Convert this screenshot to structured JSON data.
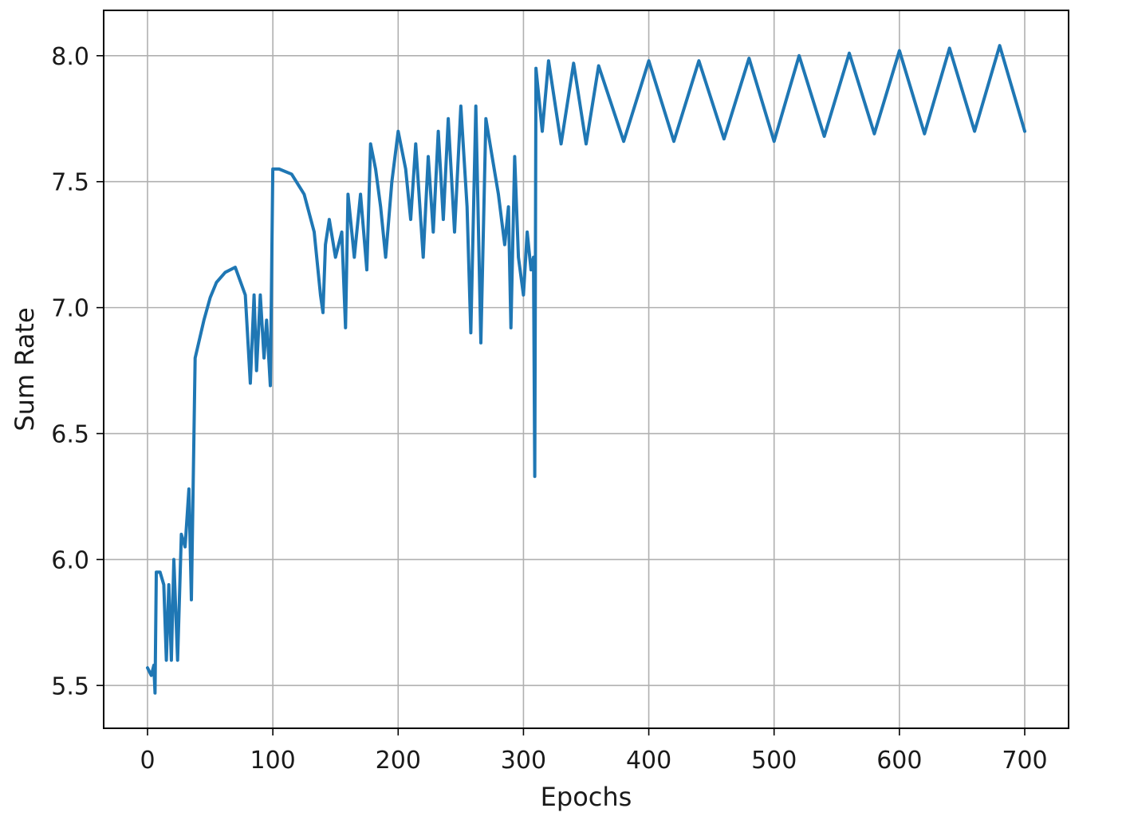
{
  "chart_data": {
    "type": "line",
    "title": "",
    "xlabel": "Epochs",
    "ylabel": "Sum Rate",
    "xlim": [
      -35,
      735
    ],
    "ylim": [
      5.33,
      8.18
    ],
    "xticks": [
      0,
      100,
      200,
      300,
      400,
      500,
      600,
      700
    ],
    "yticks": [
      5.5,
      6.0,
      6.5,
      7.0,
      7.5,
      8.0
    ],
    "xtick_labels": [
      "0",
      "100",
      "200",
      "300",
      "400",
      "500",
      "600",
      "700"
    ],
    "ytick_labels": [
      "5.5",
      "6.0",
      "6.5",
      "7.0",
      "7.5",
      "8.0"
    ],
    "grid": true,
    "series": [
      {
        "color": "#1f77b4",
        "x": [
          0,
          3,
          5,
          6,
          7,
          10,
          13,
          15,
          17,
          19,
          21,
          24,
          27,
          30,
          33,
          35,
          38,
          45,
          50,
          55,
          62,
          70,
          78,
          82,
          85,
          87,
          90,
          93,
          95,
          98,
          100,
          102,
          105,
          115,
          125,
          133,
          138,
          140,
          142,
          145,
          150,
          155,
          158,
          160,
          165,
          170,
          175,
          178,
          182,
          186,
          190,
          195,
          200,
          206,
          210,
          214,
          220,
          224,
          228,
          232,
          236,
          240,
          245,
          250,
          255,
          258,
          262,
          266,
          270,
          275,
          280,
          285,
          288,
          290,
          293,
          296,
          300,
          303,
          306,
          308,
          309,
          310,
          315,
          320,
          330,
          340,
          350,
          360,
          380,
          400,
          420,
          440,
          460,
          480,
          500,
          520,
          540,
          560,
          580,
          600,
          620,
          640,
          660,
          680,
          700
        ],
        "y": [
          5.57,
          5.54,
          5.58,
          5.47,
          5.95,
          5.95,
          5.9,
          5.6,
          5.9,
          5.6,
          6.0,
          5.6,
          6.1,
          6.05,
          6.28,
          5.84,
          6.8,
          6.95,
          7.04,
          7.1,
          7.14,
          7.16,
          7.05,
          6.7,
          7.05,
          6.75,
          7.05,
          6.8,
          6.95,
          6.69,
          7.55,
          7.55,
          7.55,
          7.53,
          7.45,
          7.3,
          7.05,
          6.98,
          7.25,
          7.35,
          7.2,
          7.3,
          6.92,
          7.45,
          7.2,
          7.45,
          7.15,
          7.65,
          7.55,
          7.4,
          7.2,
          7.5,
          7.7,
          7.55,
          7.35,
          7.65,
          7.2,
          7.6,
          7.3,
          7.7,
          7.35,
          7.75,
          7.3,
          7.8,
          7.4,
          6.9,
          7.8,
          6.86,
          7.75,
          7.6,
          7.45,
          7.25,
          7.4,
          6.92,
          7.6,
          7.2,
          7.05,
          7.3,
          7.15,
          7.2,
          6.33,
          7.95,
          7.7,
          7.98,
          7.65,
          7.97,
          7.65,
          7.96,
          7.66,
          7.98,
          7.66,
          7.98,
          7.67,
          7.99,
          7.66,
          8.0,
          7.68,
          8.01,
          7.69,
          8.02,
          7.69,
          8.03,
          7.7,
          8.04,
          7.7
        ]
      }
    ]
  }
}
